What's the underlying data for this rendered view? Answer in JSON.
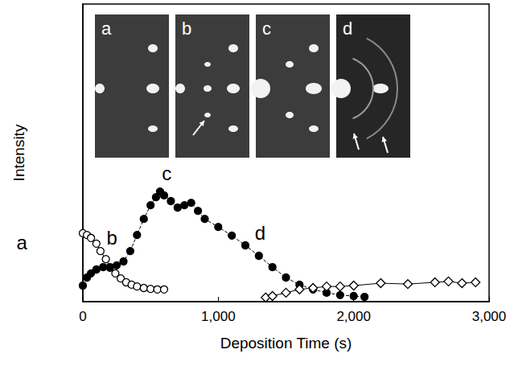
{
  "chart_data": {
    "type": "line",
    "x_label": "Deposition Time (s)",
    "y_label": "Intensity",
    "xlim": [
      0,
      3000
    ],
    "xticks": [
      0,
      1000,
      2000,
      3000
    ],
    "ylim": [
      0,
      100
    ],
    "tick_labels": "x",
    "grid": false,
    "insets": [
      "a",
      "b",
      "c",
      "d"
    ],
    "annotations": [
      {
        "text": "a",
        "x": -450,
        "y": 20
      },
      {
        "text": "b",
        "x": 215,
        "y": 21.6
      },
      {
        "text": "c",
        "x": 620,
        "y": 43
      },
      {
        "text": "d",
        "x": 1310,
        "y": 23
      }
    ],
    "series": [
      {
        "color": "#000000",
        "marker": "open_circle",
        "line_style": "dashed",
        "x": [
          0,
          30,
          60,
          100,
          130,
          170,
          200,
          240,
          280,
          320,
          360,
          400,
          450,
          500,
          550,
          600
        ],
        "values": [
          23,
          22.4,
          21.4,
          19.5,
          17,
          14.3,
          11.6,
          9.5,
          7.8,
          6.5,
          5.7,
          5.1,
          4.6,
          4.3,
          4.1,
          4.1
        ]
      },
      {
        "color": "#000000",
        "marker": "circle",
        "line_style": "dashed",
        "x": [
          0,
          30,
          60,
          100,
          150,
          200,
          250,
          300,
          350,
          400,
          450,
          500,
          540,
          570,
          600,
          650,
          700,
          750,
          800,
          850,
          900,
          1000,
          1100,
          1200,
          1300,
          1400,
          1500,
          1600,
          1700,
          1800,
          1900,
          2000,
          2080
        ],
        "values": [
          5.4,
          8.1,
          9.5,
          10.8,
          11.6,
          11.4,
          12.2,
          13.5,
          17,
          22.4,
          27.8,
          32.4,
          35.1,
          37,
          35.7,
          33.8,
          31.6,
          32.4,
          33.2,
          30.5,
          27.8,
          25.1,
          22.2,
          18.9,
          15.4,
          11.6,
          8.1,
          5.7,
          4.1,
          3,
          2.2,
          1.9,
          1.6
        ]
      },
      {
        "color": "#000000",
        "marker": "open_diamond",
        "line_style": "solid",
        "x": [
          1350,
          1400,
          1500,
          1600,
          1700,
          1800,
          1900,
          2000,
          2200,
          2400,
          2600,
          2700,
          2800,
          2900
        ],
        "values": [
          1.4,
          1.9,
          3,
          4.1,
          4.6,
          5.1,
          5.1,
          5.4,
          6.2,
          5.9,
          6.5,
          6.8,
          6.2,
          6.5
        ]
      }
    ]
  }
}
